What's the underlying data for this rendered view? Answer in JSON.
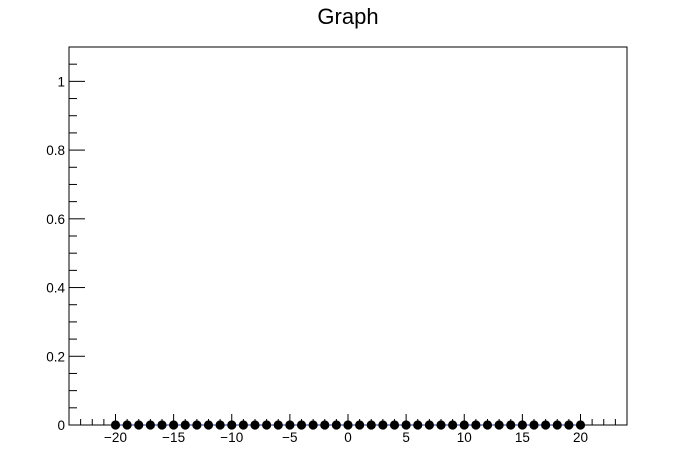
{
  "chart_data": {
    "type": "scatter",
    "title": "Graph",
    "xlabel": "",
    "ylabel": "",
    "xlim": [
      -24,
      24
    ],
    "ylim": [
      0,
      1.1
    ],
    "grid": false,
    "legend": "none",
    "x_ticks": [
      -20,
      -15,
      -10,
      -5,
      0,
      5,
      10,
      15,
      20
    ],
    "x_tick_labels": [
      "−20",
      "−15",
      "−10",
      "−5",
      "0",
      "5",
      "10",
      "15",
      "20"
    ],
    "y_ticks": [
      0,
      0.2,
      0.4,
      0.6,
      0.8,
      1
    ],
    "y_tick_labels": [
      "0",
      "0.2",
      "0.4",
      "0.6",
      "0.8",
      "1"
    ],
    "series": [
      {
        "name": "Graph",
        "marker_color": "#000000",
        "line_color": "#1f2a8c",
        "x": [
          -20,
          -19,
          -18,
          -17,
          -16,
          -15,
          -14,
          -13,
          -12,
          -11,
          -10,
          -9,
          -8,
          -7,
          -6,
          -5,
          -4,
          -3,
          -2,
          -1,
          0,
          1,
          2,
          3,
          4,
          5,
          6,
          7,
          8,
          9,
          10,
          11,
          12,
          13,
          14,
          15,
          16,
          17,
          18,
          19,
          20
        ],
        "y": [
          0,
          0,
          0,
          0,
          0,
          0,
          0,
          0,
          0,
          0,
          0,
          0,
          0,
          0,
          0,
          0,
          0,
          0,
          0,
          0,
          0,
          0,
          0,
          0,
          0,
          0,
          0,
          0,
          0,
          0,
          0,
          0,
          0,
          0,
          0,
          0,
          0,
          0,
          0,
          0,
          0
        ]
      }
    ]
  }
}
